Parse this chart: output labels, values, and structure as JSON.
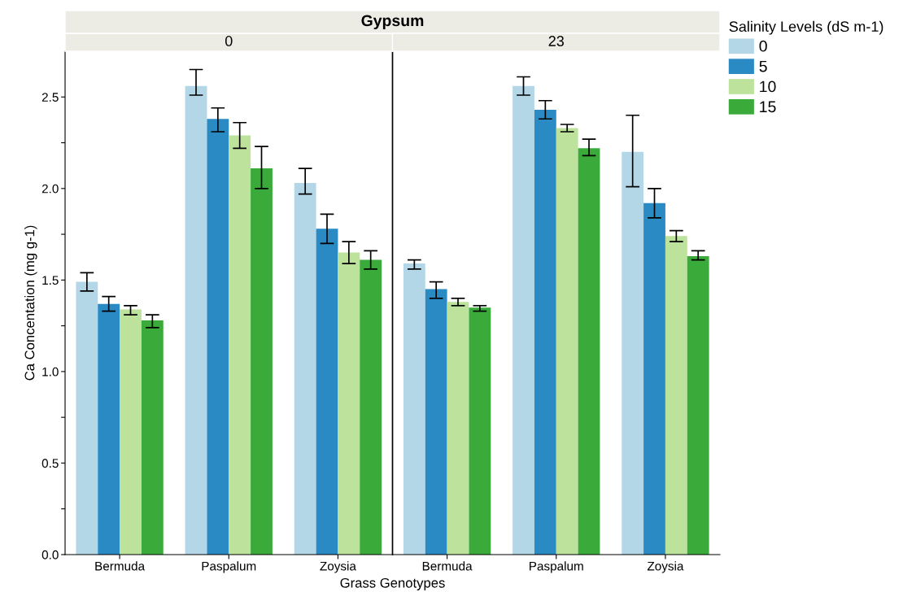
{
  "chart_data": [
    {
      "type": "bar",
      "title": "Gypsum",
      "subtitle": "0",
      "xlabel": "Grass Genotypes",
      "ylabel": "Ca Concentation (mg g-1)",
      "legend_title": "Salinity Levels (dS m-1)",
      "legend": "top right",
      "categories": [
        "Bermuda",
        "Paspalum",
        "Zoysia"
      ],
      "ylim": [
        0,
        2.75
      ],
      "yticks": [
        {
          "value": 0,
          "label": "0.0"
        },
        {
          "value": 0.25,
          "label": null
        },
        {
          "value": 0.5,
          "label": "0.5"
        },
        {
          "value": 0.75,
          "label": null
        },
        {
          "value": 1.0,
          "label": "1.0"
        },
        {
          "value": 1.25,
          "label": null
        },
        {
          "value": 1.5,
          "label": "1.5"
        },
        {
          "value": 1.75,
          "label": null
        },
        {
          "value": 2.0,
          "label": "2.0"
        },
        {
          "value": 2.25,
          "label": null
        },
        {
          "value": 2.5,
          "label": "2.5"
        }
      ],
      "series": [
        {
          "name": "0",
          "color": "#b4d7e8",
          "values": [
            1.49,
            2.56,
            2.03
          ],
          "errors": [
            [
              1.44,
              1.54
            ],
            [
              2.51,
              2.65
            ],
            [
              1.97,
              2.11
            ]
          ]
        },
        {
          "name": "5",
          "color": "#2a8bc4",
          "values": [
            1.37,
            2.38,
            1.78
          ],
          "errors": [
            [
              1.33,
              1.41
            ],
            [
              2.31,
              2.44
            ],
            [
              1.7,
              1.86
            ]
          ]
        },
        {
          "name": "10",
          "color": "#bde29c",
          "values": [
            1.34,
            2.29,
            1.65
          ],
          "errors": [
            [
              1.31,
              1.36
            ],
            [
              2.22,
              2.36
            ],
            [
              1.59,
              1.71
            ]
          ]
        },
        {
          "name": "15",
          "color": "#3aab3a",
          "values": [
            1.28,
            2.11,
            1.61
          ],
          "errors": [
            [
              1.24,
              1.31
            ],
            [
              2.0,
              2.23
            ],
            [
              1.56,
              1.66
            ]
          ]
        }
      ]
    },
    {
      "type": "bar",
      "subtitle": "23",
      "tick_labels": "x",
      "categories": [
        "Bermuda",
        "Paspalum",
        "Zoysia"
      ],
      "ylim": [
        0,
        2.75
      ],
      "series": [
        {
          "color": "#b4d7e8",
          "values": [
            1.59,
            2.56,
            2.2
          ],
          "errors": [
            [
              1.56,
              1.61
            ],
            [
              2.51,
              2.61
            ],
            [
              2.01,
              2.4
            ]
          ]
        },
        {
          "color": "#2a8bc4",
          "values": [
            1.45,
            2.43,
            1.92
          ],
          "errors": [
            [
              1.4,
              1.49
            ],
            [
              2.38,
              2.48
            ],
            [
              1.84,
              2.0
            ]
          ]
        },
        {
          "color": "#bde29c",
          "values": [
            1.38,
            2.33,
            1.74
          ],
          "errors": [
            [
              1.36,
              1.4
            ],
            [
              2.31,
              2.35
            ],
            [
              1.71,
              1.77
            ]
          ]
        },
        {
          "color": "#3aab3a",
          "values": [
            1.35,
            2.22,
            1.63
          ],
          "errors": [
            [
              1.33,
              1.36
            ],
            [
              2.18,
              2.27
            ],
            [
              1.61,
              1.66
            ]
          ]
        }
      ]
    }
  ]
}
